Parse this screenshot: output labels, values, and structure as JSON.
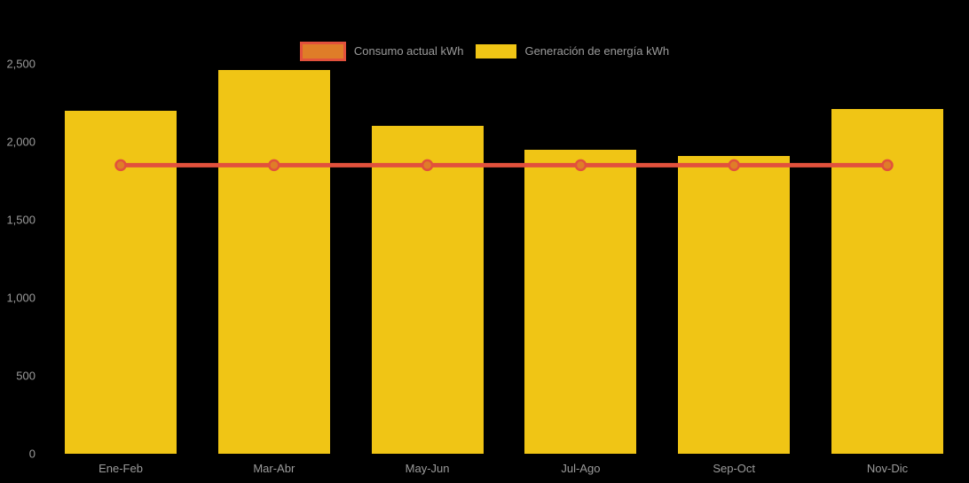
{
  "page": {
    "background": "#000000"
  },
  "legend": {
    "text_color": "#9b9b9b",
    "items": [
      {
        "label": "Consumo actual kWh",
        "series_type": "line",
        "fill": "#df7d28",
        "border": "#e2513c"
      },
      {
        "label": "Generación de energía kWh",
        "series_type": "bar",
        "fill": "#f0c515",
        "border": "#f0c515"
      }
    ]
  },
  "chart_data": {
    "type": "bar",
    "title": "",
    "xlabel": "",
    "ylabel": "",
    "categories": [
      "Ene-Feb",
      "Mar-Abr",
      "May-Jun",
      "Jul-Ago",
      "Sep-Oct",
      "Nov-Dic"
    ],
    "series": [
      {
        "name": "Generación de energía kWh",
        "type": "bar",
        "color": "#f0c515",
        "values": [
          2200,
          2460,
          2100,
          1950,
          1910,
          2210
        ]
      },
      {
        "name": "Consumo actual kWh",
        "type": "line",
        "line_color": "#e2513c",
        "point_fill": "#df7d28",
        "values": [
          1850,
          1850,
          1850,
          1850,
          1850,
          1850
        ]
      }
    ],
    "ylim": [
      0,
      2500
    ],
    "yticks": [
      0,
      500,
      1000,
      1500,
      2000,
      2500
    ],
    "ytick_labels": [
      "0",
      "500",
      "1,000",
      "1,500",
      "2,000",
      "2,500"
    ],
    "grid": false,
    "legend_position": "top",
    "axis_text_color": "#9b9b9b"
  }
}
